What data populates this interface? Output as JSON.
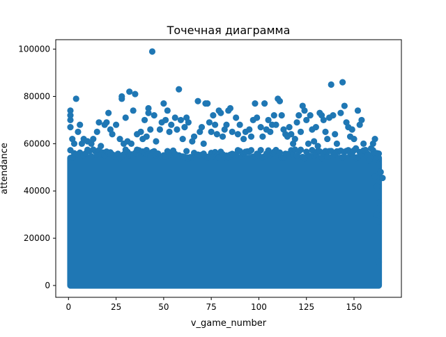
{
  "chart_data": {
    "type": "scatter",
    "title": "Точечная диаграмма",
    "xlabel": "v_game_number",
    "ylabel": "attendance",
    "xlim": [
      -6.7,
      174.9
    ],
    "ylim": [
      -5000,
      104000
    ],
    "xticks": [
      0,
      25,
      50,
      75,
      100,
      125,
      150
    ],
    "yticks": [
      0,
      20000,
      40000,
      60000,
      80000,
      100000
    ],
    "grid": false,
    "legend": "none",
    "marker_color": "#1f77b4",
    "dense_region": {
      "x": [
        1,
        163
      ],
      "y": [
        0,
        54000
      ]
    },
    "points": [
      [
        44,
        99000
      ],
      [
        1,
        74000
      ],
      [
        1,
        72000
      ],
      [
        1,
        70000
      ],
      [
        1,
        67000
      ],
      [
        4,
        79000
      ],
      [
        2,
        62000
      ],
      [
        3,
        60000
      ],
      [
        5,
        65000
      ],
      [
        6,
        68000
      ],
      [
        7,
        60000
      ],
      [
        8,
        62000
      ],
      [
        10,
        61000
      ],
      [
        12,
        60000
      ],
      [
        13,
        62000
      ],
      [
        15,
        65000
      ],
      [
        16,
        69000
      ],
      [
        17,
        59000
      ],
      [
        19,
        68000
      ],
      [
        20,
        69000
      ],
      [
        21,
        73000
      ],
      [
        22,
        66000
      ],
      [
        23,
        64000
      ],
      [
        25,
        68000
      ],
      [
        27,
        62000
      ],
      [
        28,
        79000
      ],
      [
        28,
        80000
      ],
      [
        29,
        60000
      ],
      [
        30,
        71000
      ],
      [
        31,
        61000
      ],
      [
        32,
        82000
      ],
      [
        33,
        60000
      ],
      [
        34,
        74000
      ],
      [
        35,
        81000
      ],
      [
        36,
        64000
      ],
      [
        38,
        65000
      ],
      [
        39,
        62000
      ],
      [
        40,
        70000
      ],
      [
        41,
        63000
      ],
      [
        42,
        73000
      ],
      [
        42,
        75000
      ],
      [
        43,
        66000
      ],
      [
        45,
        72000
      ],
      [
        46,
        61000
      ],
      [
        48,
        66000
      ],
      [
        49,
        69000
      ],
      [
        50,
        77000
      ],
      [
        51,
        70000
      ],
      [
        52,
        74000
      ],
      [
        53,
        65000
      ],
      [
        54,
        68000
      ],
      [
        56,
        71000
      ],
      [
        57,
        66000
      ],
      [
        58,
        83000
      ],
      [
        59,
        70000
      ],
      [
        60,
        62000
      ],
      [
        61,
        67000
      ],
      [
        62,
        71000
      ],
      [
        63,
        69000
      ],
      [
        65,
        61000
      ],
      [
        66,
        63000
      ],
      [
        68,
        78000
      ],
      [
        69,
        65000
      ],
      [
        70,
        67000
      ],
      [
        71,
        60000
      ],
      [
        72,
        77000
      ],
      [
        73,
        77000
      ],
      [
        74,
        69000
      ],
      [
        75,
        65000
      ],
      [
        76,
        72000
      ],
      [
        77,
        68000
      ],
      [
        78,
        64000
      ],
      [
        79,
        74000
      ],
      [
        80,
        73000
      ],
      [
        81,
        63000
      ],
      [
        82,
        66000
      ],
      [
        83,
        68000
      ],
      [
        84,
        74000
      ],
      [
        85,
        75000
      ],
      [
        86,
        65000
      ],
      [
        88,
        71000
      ],
      [
        89,
        64000
      ],
      [
        90,
        68000
      ],
      [
        92,
        62000
      ],
      [
        93,
        65000
      ],
      [
        95,
        66000
      ],
      [
        96,
        63000
      ],
      [
        97,
        70000
      ],
      [
        98,
        77000
      ],
      [
        99,
        71000
      ],
      [
        101,
        67000
      ],
      [
        102,
        63000
      ],
      [
        103,
        77000
      ],
      [
        104,
        66000
      ],
      [
        105,
        70000
      ],
      [
        106,
        65000
      ],
      [
        107,
        68000
      ],
      [
        108,
        72000
      ],
      [
        109,
        68000
      ],
      [
        110,
        79000
      ],
      [
        111,
        78000
      ],
      [
        112,
        72000
      ],
      [
        113,
        66000
      ],
      [
        114,
        64000
      ],
      [
        115,
        63000
      ],
      [
        116,
        67000
      ],
      [
        117,
        64000
      ],
      [
        118,
        60000
      ],
      [
        119,
        62000
      ],
      [
        120,
        69000
      ],
      [
        121,
        72000
      ],
      [
        122,
        65000
      ],
      [
        123,
        76000
      ],
      [
        124,
        74000
      ],
      [
        125,
        70000
      ],
      [
        126,
        60000
      ],
      [
        127,
        72000
      ],
      [
        128,
        66000
      ],
      [
        129,
        61000
      ],
      [
        130,
        67000
      ],
      [
        131,
        59000
      ],
      [
        132,
        73000
      ],
      [
        133,
        72000
      ],
      [
        134,
        70000
      ],
      [
        135,
        65000
      ],
      [
        136,
        62000
      ],
      [
        137,
        71000
      ],
      [
        138,
        85000
      ],
      [
        139,
        72000
      ],
      [
        140,
        64000
      ],
      [
        141,
        60000
      ],
      [
        143,
        73000
      ],
      [
        144,
        86000
      ],
      [
        145,
        76000
      ],
      [
        146,
        69000
      ],
      [
        147,
        67000
      ],
      [
        148,
        63000
      ],
      [
        149,
        66000
      ],
      [
        150,
        62000
      ],
      [
        151,
        58000
      ],
      [
        152,
        74000
      ],
      [
        153,
        68000
      ],
      [
        154,
        70000
      ],
      [
        155,
        60000
      ],
      [
        156,
        57000
      ],
      [
        157,
        55000
      ],
      [
        158,
        53000
      ],
      [
        159,
        58000
      ],
      [
        160,
        60000
      ],
      [
        161,
        62000
      ],
      [
        162,
        56000
      ],
      [
        163,
        51000
      ],
      [
        164,
        48000
      ],
      [
        165,
        45500
      ],
      [
        163,
        35000
      ],
      [
        163,
        27000
      ],
      [
        163,
        10000
      ],
      [
        162,
        30000
      ],
      [
        162,
        42000
      ],
      [
        161,
        46000
      ]
    ]
  }
}
